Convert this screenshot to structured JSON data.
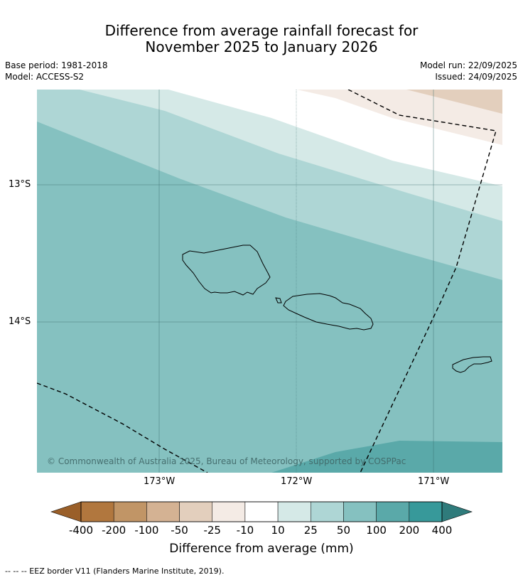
{
  "title": {
    "line1": "Difference from average rainfall forecast for",
    "line2": "November 2025 to January 2026"
  },
  "meta": {
    "base_period": "Base period: 1981-2018",
    "model": "Model: ACCESS-S2",
    "model_run": "Model run: 22/09/2025",
    "issued": "Issued: 24/09/2025"
  },
  "axes": {
    "lat_labels": [
      "13°S",
      "14°S"
    ],
    "lon_labels": [
      "173°W",
      "172°W",
      "171°W"
    ]
  },
  "map": {
    "copyright": "© Commonwealth of Australia 2025, Bureau of Meteorology, supported by COSPPac",
    "colors": {
      "band_minus25": "#f4ebe5",
      "band_minus50": "#e3cfbd",
      "band_10": "#ffffff",
      "band_25": "#d5e9e7",
      "band_50": "#aed6d5",
      "band_100": "#85c1c0",
      "band_200": "#5aa9a9"
    }
  },
  "colorbar": {
    "title": "Difference from average (mm)",
    "ticks": [
      "-400",
      "-200",
      "-100",
      "-50",
      "-25",
      "-10",
      "10",
      "25",
      "50",
      "100",
      "200",
      "400"
    ],
    "colors": [
      "#b1773e",
      "#c19566",
      "#d4b293",
      "#e3cfbd",
      "#f4ebe5",
      "#ffffff",
      "#d5e9e7",
      "#aed6d5",
      "#85c1c0",
      "#5aa9a9",
      "#37999a"
    ],
    "low_extend_color": "#9a5f29",
    "high_extend_color": "#2f7b7b"
  },
  "footnote": "--  --  -- EEZ border V11 (Flanders Marine Institute, 2019)."
}
